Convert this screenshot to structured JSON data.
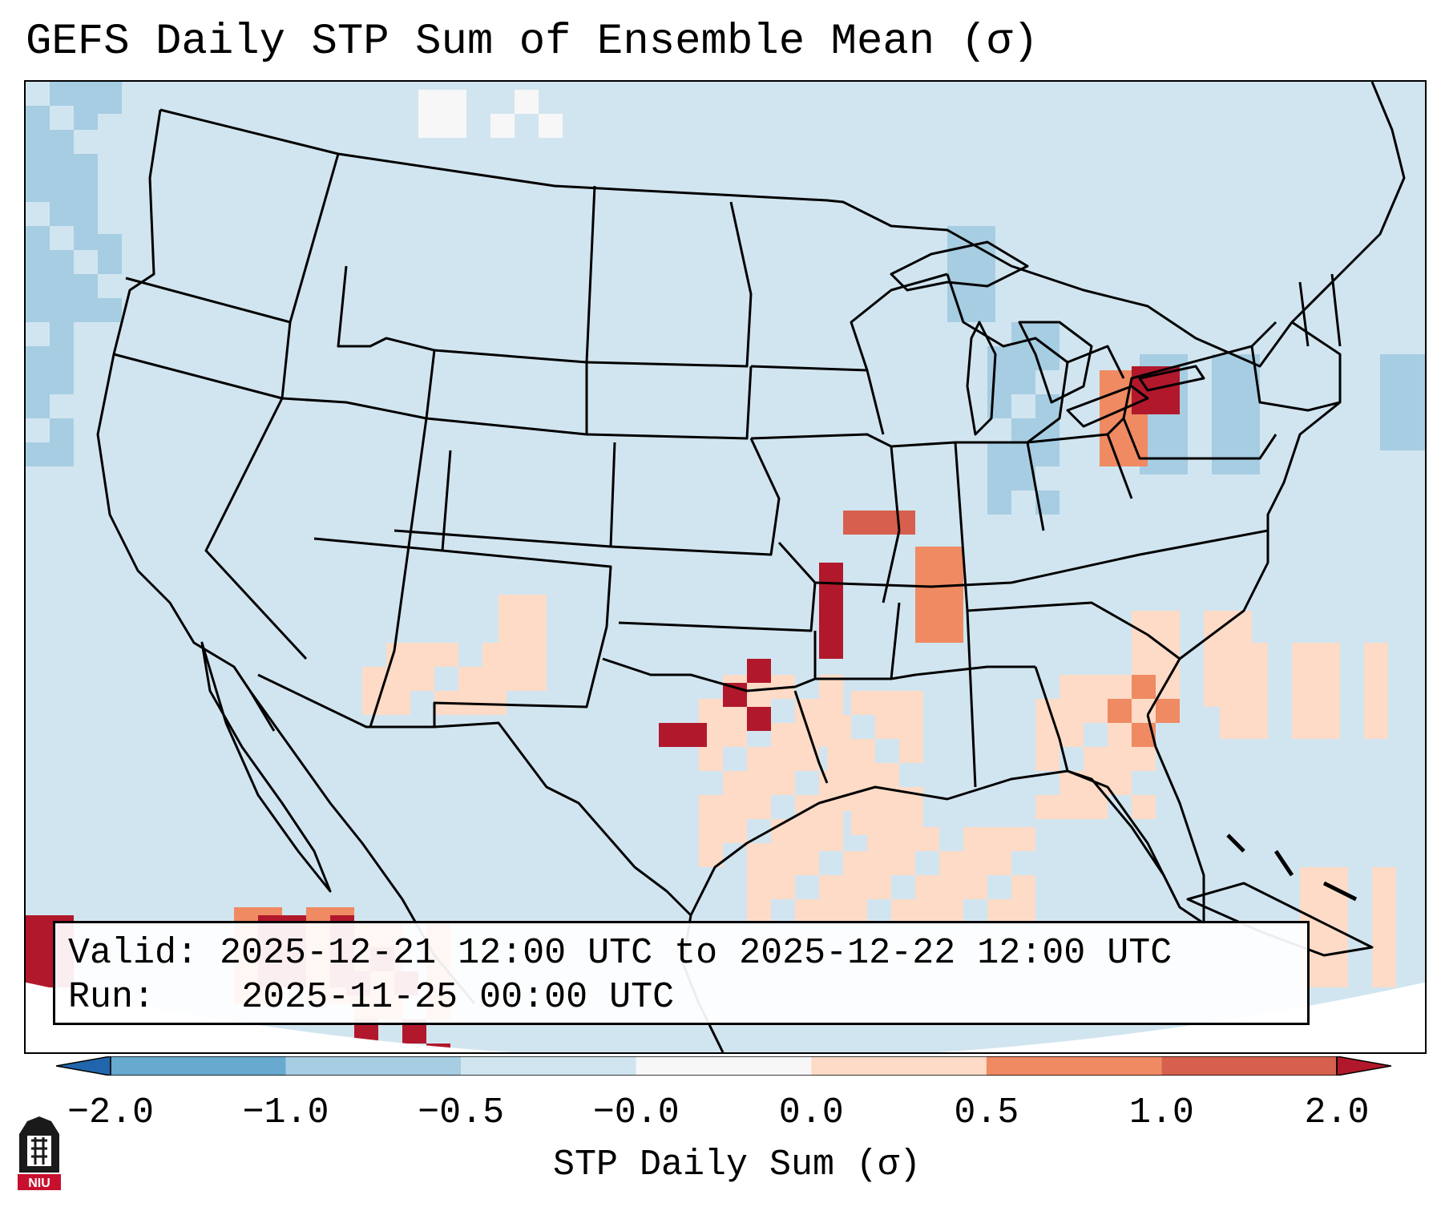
{
  "title": "GEFS Daily STP Sum of Ensemble Mean (σ)",
  "info": {
    "valid_label": "Valid:",
    "valid_value": "2025-12-21 12:00 UTC to 2025-12-22 12:00 UTC",
    "run_label": "Run:",
    "run_value": "2025-11-25 00:00 UTC"
  },
  "colorbar": {
    "label": "STP Daily Sum (σ)",
    "ticks": [
      "−2.0",
      "−1.0",
      "−0.5",
      "−0.0",
      "0.0",
      "0.5",
      "1.0",
      "2.0"
    ],
    "colors": [
      "#2166ac",
      "#67a9cf",
      "#a6cde2",
      "#d1e5f0",
      "#f7f7f7",
      "#fddbc7",
      "#ef8a62",
      "#d6604d",
      "#b2182b"
    ]
  },
  "logo": {
    "text": "NIU",
    "color": "#c8102e"
  },
  "map": {
    "background_color": "#d1e5f0",
    "outside_color": "#ffffff",
    "layers": [
      "state-boundaries",
      "coastlines",
      "stp-anomaly-shading"
    ]
  }
}
